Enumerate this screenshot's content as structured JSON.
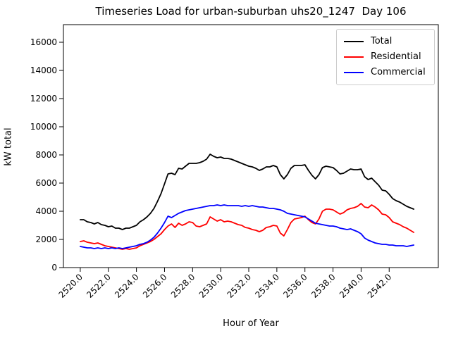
{
  "chart_data": {
    "type": "line",
    "title": "Timeseries Load for urban-suburban uhs20_1247  Day 106",
    "xlabel": "Hour of Year",
    "ylabel": "kW total",
    "x_start": 2520.0,
    "x_step": 0.25,
    "xlim": [
      2518.8,
      2545.5
    ],
    "ylim": [
      0,
      17250
    ],
    "yticks": [
      0,
      2000,
      4000,
      6000,
      8000,
      10000,
      12000,
      14000,
      16000
    ],
    "xticks": [
      2520,
      2522,
      2524,
      2526,
      2528,
      2530,
      2532,
      2534,
      2536,
      2538,
      2540,
      2542
    ],
    "xtick_labels": [
      "2520.0",
      "2522.0",
      "2524.0",
      "2526.0",
      "2528.0",
      "2530.0",
      "2532.0",
      "2534.0",
      "2536.0",
      "2538.0",
      "2540.0",
      "2542.0"
    ],
    "grid": false,
    "legend_position": "upper right",
    "series": [
      {
        "name": "Total",
        "color": "#000000",
        "values": [
          3400,
          3400,
          3250,
          3200,
          3100,
          3200,
          3050,
          3000,
          2900,
          2950,
          2800,
          2800,
          2700,
          2800,
          2800,
          2900,
          3000,
          3250,
          3400,
          3600,
          3850,
          4200,
          4700,
          5250,
          5950,
          6650,
          6700,
          6600,
          7050,
          7000,
          7200,
          7400,
          7400,
          7400,
          7450,
          7550,
          7700,
          8050,
          7900,
          7800,
          7850,
          7750,
          7750,
          7700,
          7600,
          7500,
          7400,
          7300,
          7200,
          7150,
          7050,
          6900,
          7000,
          7150,
          7150,
          7250,
          7150,
          6600,
          6300,
          6600,
          7050,
          7250,
          7250,
          7250,
          7300,
          6900,
          6550,
          6300,
          6600,
          7100,
          7200,
          7150,
          7100,
          6900,
          6650,
          6700,
          6850,
          7000,
          6950,
          6950,
          7000,
          6450,
          6250,
          6350,
          6100,
          5850,
          5500,
          5450,
          5200,
          4900,
          4750,
          4650,
          4500,
          4350,
          4250,
          4150
        ]
      },
      {
        "name": "Residential",
        "color": "#ff0000",
        "values": [
          1850,
          1900,
          1800,
          1750,
          1700,
          1750,
          1650,
          1550,
          1500,
          1450,
          1400,
          1350,
          1300,
          1350,
          1300,
          1350,
          1400,
          1550,
          1650,
          1750,
          1850,
          2000,
          2200,
          2400,
          2700,
          2950,
          3100,
          2850,
          3150,
          3000,
          3100,
          3250,
          3200,
          2950,
          2900,
          3000,
          3100,
          3600,
          3450,
          3300,
          3400,
          3250,
          3300,
          3250,
          3150,
          3050,
          3000,
          2850,
          2800,
          2700,
          2650,
          2550,
          2650,
          2850,
          2900,
          3000,
          2950,
          2450,
          2250,
          2700,
          3200,
          3450,
          3500,
          3550,
          3650,
          3400,
          3200,
          3100,
          3450,
          4000,
          4150,
          4150,
          4100,
          3950,
          3800,
          3900,
          4100,
          4200,
          4250,
          4350,
          4550,
          4300,
          4250,
          4450,
          4300,
          4100,
          3800,
          3750,
          3550,
          3250,
          3150,
          3050,
          2900,
          2800,
          2650,
          2500
        ]
      },
      {
        "name": "Commercial",
        "color": "#0000ff",
        "values": [
          1500,
          1450,
          1400,
          1400,
          1350,
          1400,
          1350,
          1400,
          1350,
          1400,
          1350,
          1400,
          1350,
          1400,
          1450,
          1500,
          1550,
          1650,
          1700,
          1800,
          1950,
          2150,
          2450,
          2800,
          3200,
          3650,
          3550,
          3700,
          3850,
          3950,
          4050,
          4100,
          4150,
          4200,
          4250,
          4300,
          4350,
          4400,
          4400,
          4450,
          4400,
          4450,
          4400,
          4400,
          4400,
          4400,
          4350,
          4400,
          4350,
          4400,
          4350,
          4300,
          4300,
          4250,
          4200,
          4200,
          4150,
          4100,
          4000,
          3850,
          3800,
          3750,
          3700,
          3650,
          3600,
          3450,
          3300,
          3150,
          3100,
          3050,
          3000,
          2950,
          2950,
          2900,
          2800,
          2750,
          2700,
          2750,
          2650,
          2550,
          2400,
          2100,
          1950,
          1850,
          1750,
          1700,
          1650,
          1650,
          1600,
          1600,
          1550,
          1550,
          1550,
          1500,
          1550,
          1600
        ]
      }
    ]
  }
}
